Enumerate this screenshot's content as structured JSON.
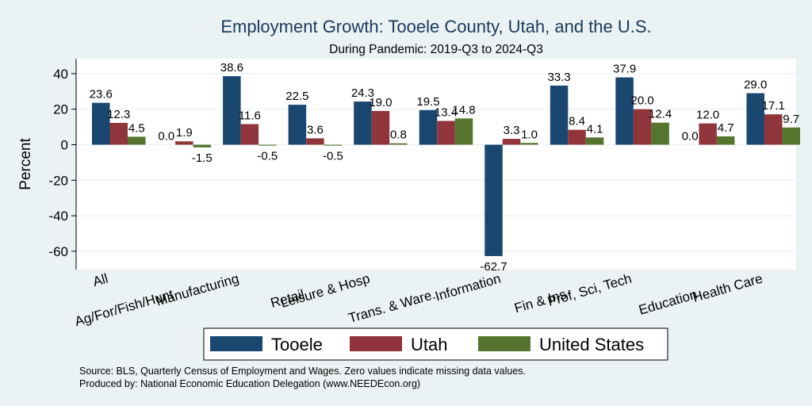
{
  "chart_data": {
    "type": "bar",
    "title": "Employment Growth: Tooele County, Utah, and the U.S.",
    "subtitle": "During Pandemic: 2019-Q3 to 2024-Q3",
    "xlabel": "",
    "ylabel": "Percent",
    "ylim": [
      -70,
      48
    ],
    "yticks": [
      40,
      20,
      0,
      -20,
      -40,
      -60
    ],
    "ytick_labels": [
      "40",
      "20",
      "0",
      "-20",
      "-40",
      "-60"
    ],
    "categories": [
      "All",
      "Ag/For/Fish/Hunt",
      "Manufacturing",
      "Retail",
      "Leisure & Hosp",
      "Trans. & Ware.",
      "Information",
      "Fin & Ins",
      "Prof, Sci, Tech",
      "Education",
      "Health Care"
    ],
    "series": [
      {
        "name": "Tooele",
        "color": "#1a476f",
        "values": [
          23.6,
          0.0,
          38.6,
          22.5,
          24.3,
          19.5,
          -62.7,
          33.3,
          37.9,
          0.0,
          29.0
        ],
        "labels": [
          "23.6",
          "0.0",
          "38.6",
          "22.5",
          "24.3",
          "19.5",
          "-62.7",
          "33.3",
          "37.9",
          "0.0",
          "29.0"
        ]
      },
      {
        "name": "Utah",
        "color": "#90353b",
        "values": [
          12.3,
          1.9,
          11.6,
          3.6,
          19.0,
          13.4,
          3.3,
          8.4,
          20.0,
          12.0,
          17.1
        ],
        "labels": [
          "12.3",
          "1.9",
          "11.6",
          "3.6",
          "19.0",
          "13.4",
          "3.3",
          "8.4",
          "20.0",
          "12.0",
          "17.1"
        ]
      },
      {
        "name": "United States",
        "color": "#55752f",
        "values": [
          4.5,
          -1.5,
          -0.5,
          -0.5,
          0.8,
          14.8,
          1.0,
          4.1,
          12.4,
          4.7,
          9.7
        ],
        "labels": [
          "4.5",
          "-1.5",
          "-0.5",
          "-0.5",
          "0.8",
          "14.8",
          "1.0",
          "4.1",
          "12.4",
          "4.7",
          "9.7"
        ]
      }
    ],
    "grid": true,
    "legend_position": "bottom"
  },
  "notes": {
    "source": "Source: BLS, Quarterly Census of Employment and Wages. Zero values indicate missing data values.",
    "produced_by": "Produced by: National Economic Education Delegation (www.NEEDEcon.org)"
  }
}
